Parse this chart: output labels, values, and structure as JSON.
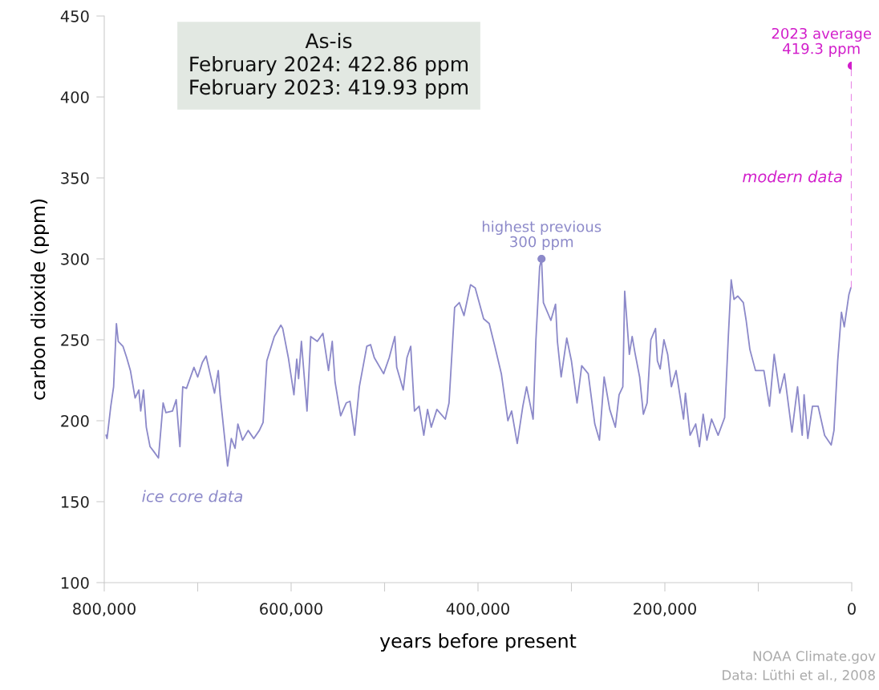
{
  "chart_data": {
    "type": "line",
    "xlabel": "years before present",
    "ylabel": "carbon dioxide (ppm)",
    "xlim": [
      800000,
      0
    ],
    "ylim": [
      100,
      450
    ],
    "xticks": [
      {
        "value": 800000,
        "label": "800,000"
      },
      {
        "value": 700000,
        "label": null
      },
      {
        "value": 600000,
        "label": "600,000"
      },
      {
        "value": 500000,
        "label": null
      },
      {
        "value": 400000,
        "label": "400,000"
      },
      {
        "value": 300000,
        "label": null
      },
      {
        "value": 200000,
        "label": "200,000"
      },
      {
        "value": 100000,
        "label": null
      },
      0
    ],
    "yticks": [
      100,
      150,
      200,
      250,
      300,
      350,
      400,
      450
    ],
    "grid": false,
    "series": [
      {
        "color": "#8c89c9",
        "line_style": "solid",
        "marker": "none",
        "x": [
          798000,
          797000,
          793000,
          790000,
          787000,
          785000,
          780000,
          776000,
          772000,
          767000,
          763000,
          761000,
          758000,
          755000,
          751000,
          747000,
          742000,
          737000,
          734000,
          727000,
          723000,
          719000,
          716000,
          712000,
          704000,
          700000,
          695000,
          691000,
          682000,
          678000,
          676000,
          672000,
          668000,
          664000,
          660000,
          657000,
          652000,
          646000,
          640000,
          634000,
          630000,
          626000,
          618000,
          611000,
          609000,
          603000,
          597000,
          594000,
          592000,
          589000,
          583000,
          579000,
          572000,
          566000,
          560000,
          556000,
          553000,
          547000,
          541000,
          537000,
          532000,
          527000,
          519000,
          515000,
          511000,
          501000,
          495000,
          489000,
          487000,
          480000,
          476000,
          472000,
          468000,
          463000,
          458000,
          454000,
          450000,
          444000,
          435000,
          431000,
          425000,
          420000,
          415000,
          408000,
          403000,
          394000,
          388000,
          382000,
          375000,
          368000,
          364000,
          358000,
          352000,
          348000,
          341000,
          338000,
          334000,
          332000,
          330000,
          322000,
          317000,
          315000,
          311000,
          305000,
          300000,
          294000,
          289000,
          282000,
          275000,
          270000,
          265000,
          259000,
          253000,
          249000,
          245000,
          243000,
          238000,
          235000,
          232000,
          227000,
          223000,
          219000,
          215000,
          210000,
          208000,
          205000,
          201000,
          197000,
          193000,
          188000,
          180000,
          178000,
          173000,
          167000,
          163000,
          159000,
          155000,
          150000,
          143000,
          136000,
          132000,
          129000,
          126000,
          122000,
          116000,
          113000,
          109000,
          103000,
          94000,
          88000,
          83000,
          77000,
          72000,
          64000,
          58000,
          53000,
          51000,
          47000,
          42000,
          36000,
          29000,
          22000,
          19000,
          15000,
          11000,
          8000,
          3000,
          1000
        ],
        "values": [
          191,
          189,
          209,
          221,
          260,
          249,
          246,
          239,
          231,
          214,
          219,
          206,
          219,
          196,
          184,
          181,
          177,
          211,
          205,
          206,
          213,
          184,
          221,
          220,
          233,
          227,
          236,
          240,
          217,
          231,
          216,
          194,
          172,
          189,
          183,
          198,
          188,
          194,
          189,
          194,
          199,
          237,
          252,
          259,
          257,
          239,
          216,
          238,
          226,
          249,
          206,
          252,
          249,
          254,
          231,
          249,
          224,
          203,
          211,
          212,
          191,
          221,
          246,
          247,
          239,
          229,
          239,
          252,
          233,
          219,
          239,
          246,
          206,
          209,
          191,
          207,
          196,
          207,
          201,
          211,
          270,
          273,
          265,
          284,
          282,
          263,
          260,
          246,
          229,
          200,
          206,
          186,
          209,
          221,
          201,
          250,
          295,
          300,
          273,
          262,
          272,
          249,
          227,
          251,
          237,
          211,
          234,
          229,
          198,
          188,
          227,
          207,
          196,
          216,
          221,
          280,
          241,
          252,
          242,
          227,
          204,
          211,
          250,
          257,
          237,
          232,
          250,
          241,
          221,
          231,
          201,
          217,
          191,
          198,
          184,
          204,
          188,
          201,
          191,
          202,
          253,
          287,
          275,
          277,
          273,
          262,
          244,
          231,
          231,
          209,
          241,
          217,
          229,
          193,
          221,
          191,
          216,
          189,
          209,
          209,
          191,
          185,
          194,
          237,
          267,
          258,
          278,
          282
        ]
      },
      {
        "color": "#e98be6",
        "line_style": "dashed",
        "marker": "none",
        "x": [
          0,
          0
        ],
        "values": [
          282,
          419.3
        ]
      },
      {
        "type": "scatter",
        "color": "#d21fcb",
        "marker": "circle",
        "x": [
          0
        ],
        "values": [
          419.3
        ]
      },
      {
        "type": "scatter",
        "color": "#8c89c9",
        "marker": "circle",
        "x": [
          332000
        ],
        "values": [
          300
        ]
      }
    ],
    "annotations": [
      "2023 average\n419.3 ppm",
      "highest previous\n300 ppm",
      "modern data",
      "ice core data",
      "As-is\nFebruary 2024: 422.86 ppm\nFebruary 2023: 419.93 ppm",
      "NOAA Climate.gov\nData: Lüthi et al., 2008"
    ]
  }
}
